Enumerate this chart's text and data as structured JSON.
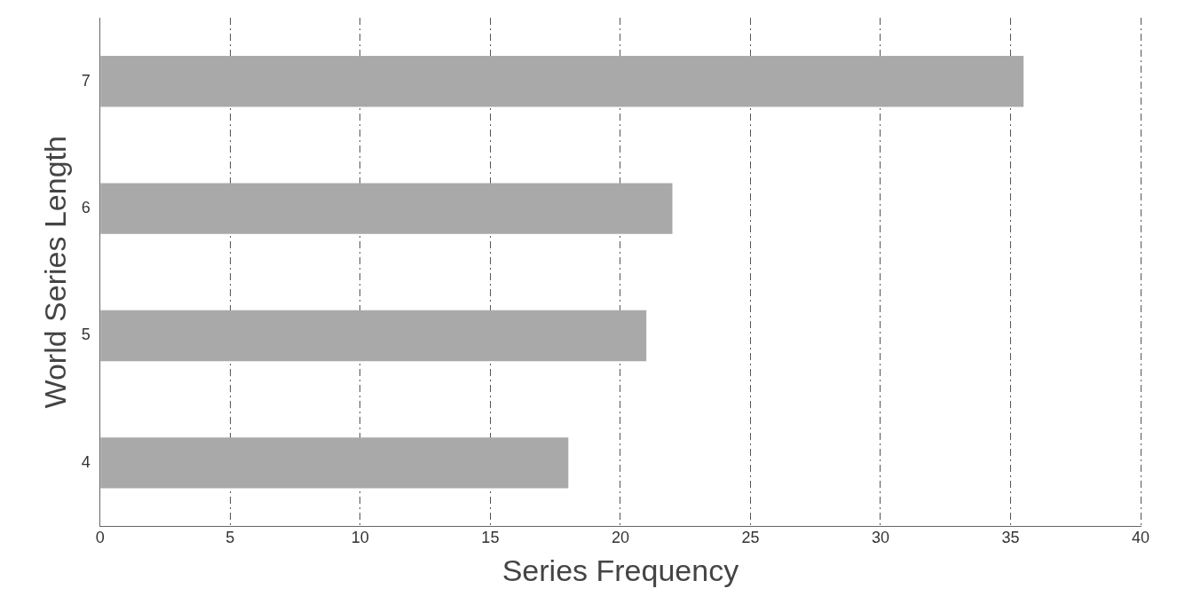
{
  "chart_data": {
    "type": "bar",
    "orientation": "horizontal",
    "xlabel": "Series Frequency",
    "ylabel": "World Series Length",
    "categories": [
      "7",
      "6",
      "5",
      "4"
    ],
    "values": [
      35.5,
      22,
      21,
      18
    ],
    "color": "#a9a9a9",
    "xlim": [
      0,
      40
    ],
    "xticks": [
      0,
      5,
      10,
      15,
      20,
      25,
      30,
      35,
      40
    ],
    "grid": "x",
    "legend": false
  }
}
